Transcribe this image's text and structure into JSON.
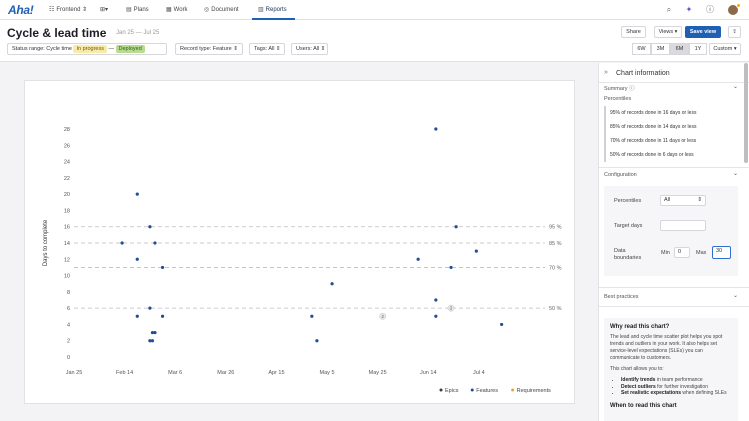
{
  "nav": {
    "logo": "Aha!",
    "workspace": "Frontend",
    "plans": "Plans",
    "work": "Work",
    "document": "Document",
    "reports": "Reports"
  },
  "header": {
    "title": "Cycle & lead time",
    "date_range": "Jan 25 — Jul 25",
    "share": "Share",
    "views": "Views",
    "save_view": "Save view"
  },
  "filters": {
    "status_label": "Status range: Cycle time",
    "status_from": "In progress",
    "status_sep": "—",
    "status_to": "Deployed",
    "record_type": "Record type: Feature",
    "tags": "Tags: All",
    "users": "Users: All"
  },
  "ranges": [
    "6W",
    "3M",
    "6M",
    "1Y",
    "Custom"
  ],
  "active_range": "6M",
  "panel": {
    "title": "Chart information",
    "summary": "Summary",
    "percentiles_title": "Percentiles",
    "percentile_rows": [
      "95% of records done in 16 days or less",
      "85% of records done in 14 days or less",
      "70% of records done in 11 days or less",
      "50% of records done in 6 days or less"
    ],
    "configuration": "Configuration",
    "cfg_percentiles_label": "Percentiles",
    "cfg_percentiles_value": "All",
    "cfg_target_label": "Target days",
    "cfg_target_value": "",
    "cfg_boundaries_label": "Data boundaries",
    "cfg_min_label": "Min",
    "cfg_min_value": "0",
    "cfg_max_label": "Max",
    "cfg_max_value": "30",
    "best_practices": "Best practices",
    "why_title": "Why read this chart?",
    "why_text1": "The lead and cycle time scatter plot helps you spot trends and outliers in your work. It also helps set service-level expectations (SLEs) you can communicate to customers.",
    "why_text2": "This chart allows you to:",
    "why_items": [
      {
        "bold": "Identify trends",
        "rest": " in team performance"
      },
      {
        "bold": "Detect outliers",
        "rest": " for further investigation"
      },
      {
        "bold": "Set realistic expectations",
        "rest": " when defining SLEs"
      }
    ],
    "when_title": "When to read this chart"
  },
  "chart_data": {
    "type": "scatter",
    "ylabel": "Days to complete",
    "xlabel": "",
    "ylim": [
      0,
      28
    ],
    "yticks": [
      0,
      2,
      4,
      6,
      8,
      10,
      12,
      14,
      16,
      18,
      20,
      22,
      24,
      26,
      28
    ],
    "xticks": [
      "Jan 25",
      "Feb 14",
      "Mar 6",
      "Mar 26",
      "Apr 15",
      "May 5",
      "May 25",
      "Jun 14",
      "Jul 4"
    ],
    "xlim": [
      "2025-01-25",
      "2025-07-25"
    ],
    "percentile_lines": [
      {
        "label": "95 %",
        "value": 16
      },
      {
        "label": "85 %",
        "value": 14
      },
      {
        "label": "70 %",
        "value": 11
      },
      {
        "label": "50 %",
        "value": 6
      }
    ],
    "series": [
      {
        "name": "Features",
        "color": "#1f4e9c",
        "points": [
          {
            "x": "2025-02-13",
            "y": 14
          },
          {
            "x": "2025-02-19",
            "y": 20
          },
          {
            "x": "2025-02-19",
            "y": 12
          },
          {
            "x": "2025-02-19",
            "y": 5
          },
          {
            "x": "2025-02-24",
            "y": 16
          },
          {
            "x": "2025-02-24",
            "y": 6
          },
          {
            "x": "2025-02-24",
            "y": 2
          },
          {
            "x": "2025-02-25",
            "y": 3
          },
          {
            "x": "2025-02-25",
            "y": 2
          },
          {
            "x": "2025-02-26",
            "y": 14
          },
          {
            "x": "2025-02-26",
            "y": 3
          },
          {
            "x": "2025-03-01",
            "y": 11
          },
          {
            "x": "2025-03-01",
            "y": 5
          },
          {
            "x": "2025-04-29",
            "y": 5
          },
          {
            "x": "2025-05-01",
            "y": 2
          },
          {
            "x": "2025-05-07",
            "y": 9
          },
          {
            "x": "2025-06-10",
            "y": 12
          },
          {
            "x": "2025-06-17",
            "y": 28
          },
          {
            "x": "2025-06-17",
            "y": 7
          },
          {
            "x": "2025-06-17",
            "y": 5
          },
          {
            "x": "2025-06-23",
            "y": 11
          },
          {
            "x": "2025-06-25",
            "y": 16
          },
          {
            "x": "2025-07-03",
            "y": 13
          },
          {
            "x": "2025-07-13",
            "y": 4
          }
        ]
      }
    ],
    "clusters": [
      {
        "x": "2025-05-27",
        "y": 5,
        "count": "2"
      },
      {
        "x": "2025-06-23",
        "y": 6,
        "count": "2"
      }
    ],
    "legend": [
      {
        "name": "Epics",
        "color": "#3a3a48"
      },
      {
        "name": "Features",
        "color": "#1f4e9c"
      },
      {
        "name": "Requirements",
        "color": "#e8a33c"
      }
    ],
    "legend_position": "bottom-right",
    "grid": false
  }
}
